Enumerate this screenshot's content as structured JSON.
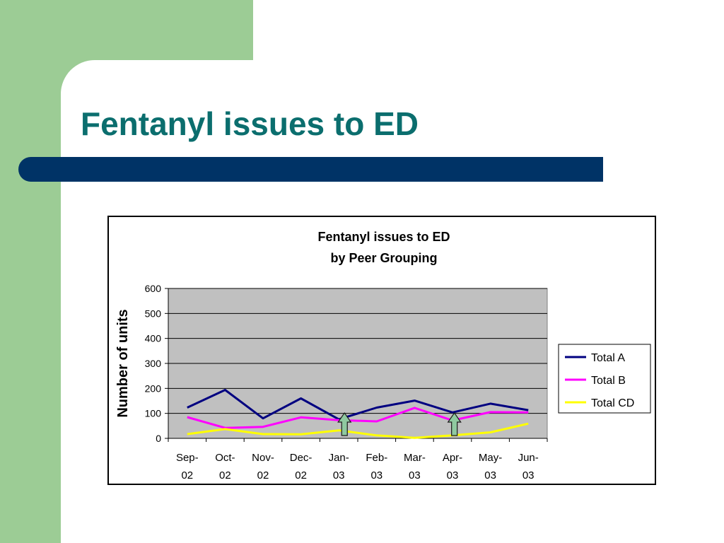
{
  "slide": {
    "title": "Fentanyl issues to ED"
  },
  "colors": {
    "left_band": "#9ccc95",
    "title_text": "#0b6e6e",
    "rule_bar": "#003366",
    "plot_background": "#c0c0c0"
  },
  "chart_data": {
    "type": "line",
    "title_lines": [
      "Fentanyl issues to ED",
      "by Peer Grouping"
    ],
    "xlabel": "",
    "ylabel": "Number of units",
    "ylim": [
      0,
      600
    ],
    "yticks": [
      0,
      100,
      200,
      300,
      400,
      500,
      600
    ],
    "grid": true,
    "legend_position": "right",
    "categories": [
      [
        "Sep-",
        "02"
      ],
      [
        "Oct-",
        "02"
      ],
      [
        "Nov-",
        "02"
      ],
      [
        "Dec-",
        "02"
      ],
      [
        "Jan-",
        "03"
      ],
      [
        "Feb-",
        "03"
      ],
      [
        "Mar-",
        "03"
      ],
      [
        "Apr-",
        "03"
      ],
      [
        "May-",
        "03"
      ],
      [
        "Jun-",
        "03"
      ]
    ],
    "series": [
      {
        "name": "Total A",
        "color": "#000080",
        "values": [
          123,
          194,
          80,
          160,
          76,
          123,
          151,
          104,
          139,
          113
        ]
      },
      {
        "name": "Total B",
        "color": "#ff00ff",
        "values": [
          85,
          42,
          46,
          84,
          73,
          68,
          122,
          72,
          105,
          104
        ]
      },
      {
        "name": "Total CD",
        "color": "#ffff00",
        "values": [
          17,
          37,
          17,
          16,
          32,
          12,
          2,
          12,
          24,
          59
        ]
      }
    ],
    "annotations": [
      {
        "type": "up-arrow",
        "position_index": 4.15,
        "color": "#8fc9a0"
      },
      {
        "type": "up-arrow",
        "position_index": 7.05,
        "color": "#8fc9a0"
      }
    ]
  }
}
